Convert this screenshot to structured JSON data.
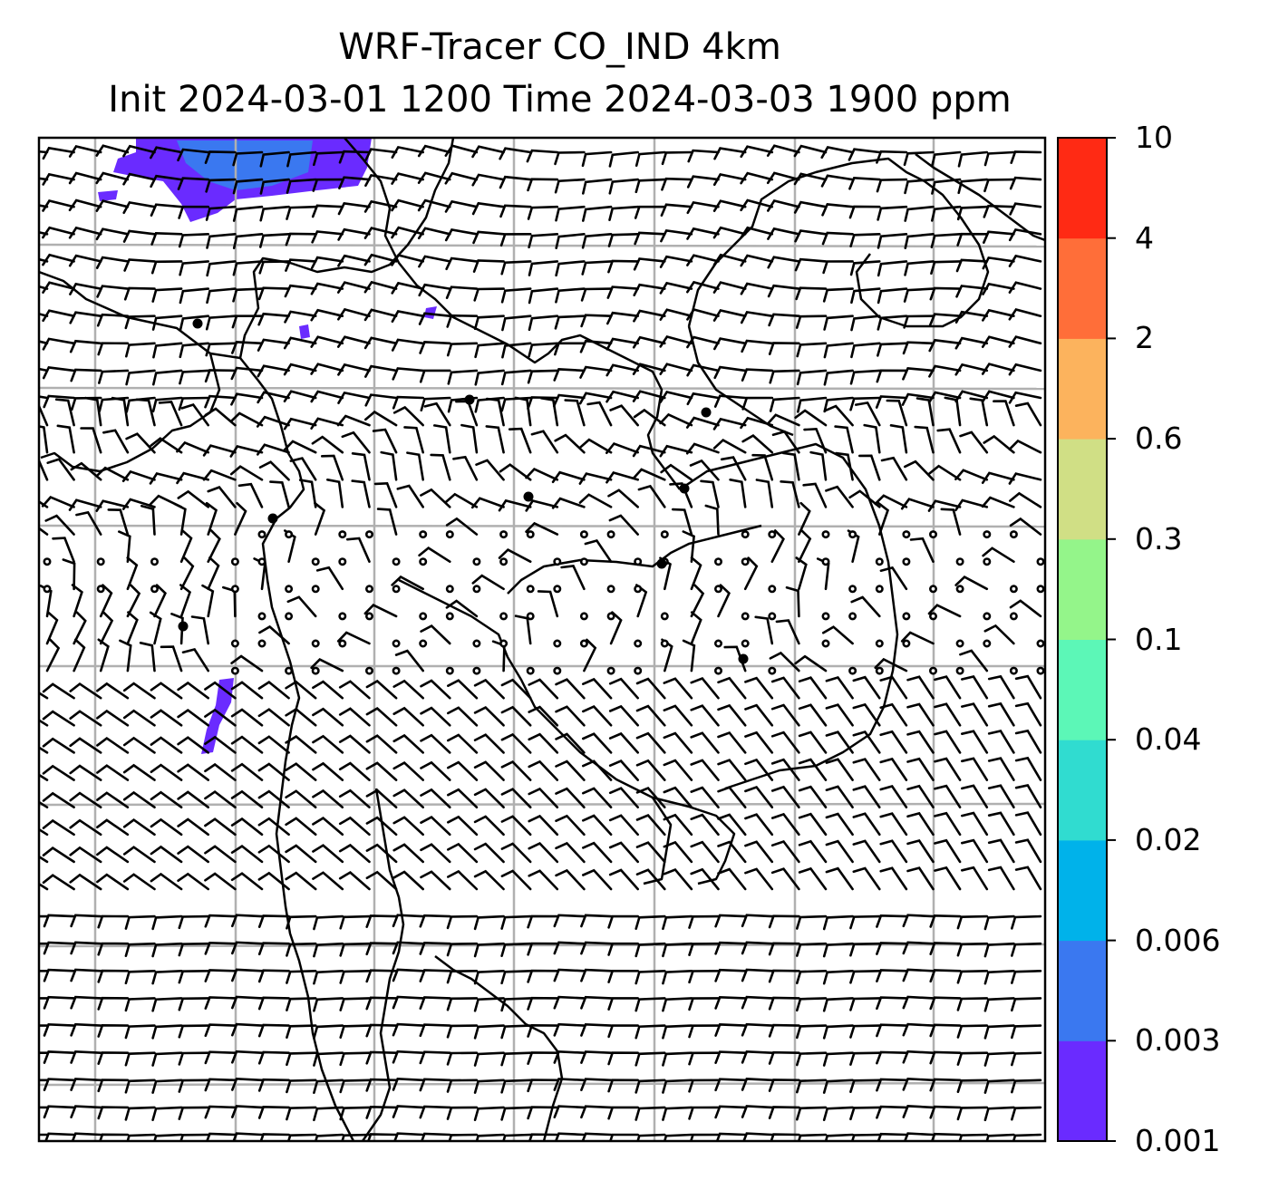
{
  "title": {
    "line1": "WRF-Tracer CO_IND 4km",
    "line2": "Init 2024-03-01 1200 Time 2024-03-03 1900 ppm"
  },
  "colorbar": {
    "levels": [
      "0.001",
      "0.003",
      "0.006",
      "0.02",
      "0.04",
      "0.1",
      "0.3",
      "0.6",
      "2",
      "4",
      "10"
    ],
    "colors": [
      "#6a2bff",
      "#3a78f0",
      "#00b2ea",
      "#30dcd0",
      "#5cf7b7",
      "#94f58a",
      "#d0df85",
      "#fcb35d",
      "#ff6e39",
      "#ff2a14"
    ]
  },
  "map": {
    "gridline_color": "#b0b0b0",
    "wind_barbs": "black",
    "coastlines": "black"
  }
}
